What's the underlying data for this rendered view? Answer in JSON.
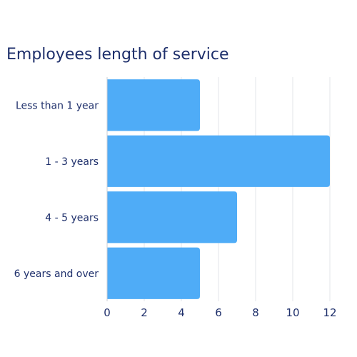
{
  "chart_data": {
    "type": "bar",
    "orientation": "horizontal",
    "title": "Employees length of service",
    "xlabel": "",
    "ylabel": "",
    "categories": [
      "Less than 1 year",
      "1 - 3 years",
      "4 - 5 years",
      "6 years and over"
    ],
    "values": [
      5,
      12,
      7,
      5
    ],
    "xlim": [
      0,
      12
    ],
    "x_ticks": [
      "0",
      "2",
      "4",
      "6",
      "8",
      "10",
      "12"
    ],
    "grid": "vertical",
    "legend": "none",
    "colors": {
      "bar": "#4facf7",
      "grid": "#e3e5ea",
      "axis": "#c9ccd3",
      "text": "#1e2f6b"
    }
  }
}
